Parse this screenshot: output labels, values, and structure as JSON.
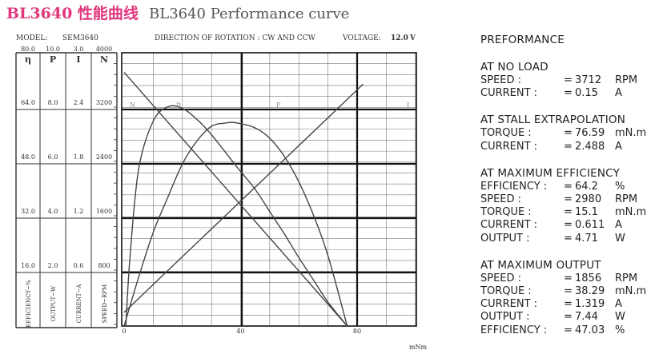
{
  "title": {
    "main": "BL3640 性能曲线",
    "sub": "BL3640 Performance curve"
  },
  "header": {
    "model_label": "MODEL:",
    "model_value": "SEM3640",
    "direction": "DIRECTION OF ROTATION : CW AND CCW",
    "voltage_label": "VOLTAGE:",
    "voltage_value": "12.0",
    "voltage_unit": "V"
  },
  "chart_data": {
    "type": "line",
    "x": {
      "unit": "mNm",
      "range": [
        0,
        96
      ],
      "ticks": [
        "0",
        "40",
        "80"
      ],
      "tick_values": [
        0,
        40,
        80
      ]
    },
    "axes": [
      {
        "symbol": "η",
        "title": "EFFICIENCY~%",
        "max": "80.0",
        "ticks": [
          "64.0",
          "48.0",
          "32.0",
          "16.0"
        ]
      },
      {
        "symbol": "P",
        "title": "OUTPUT~W",
        "max": "10.0",
        "ticks": [
          "8.0",
          "6.0",
          "4.0",
          "2.0"
        ]
      },
      {
        "symbol": "I",
        "title": "CURRENT~A",
        "max": "3.0",
        "ticks": [
          "2.4",
          "1.8",
          "1.2",
          "0.6"
        ]
      },
      {
        "symbol": "N",
        "title": "SPEED~RPM",
        "max": "4000",
        "ticks": [
          "3200",
          "2400",
          "1600",
          "800"
        ]
      }
    ],
    "grid": true,
    "series": [
      {
        "name": "N",
        "axis": "N",
        "x": [
          0,
          38.29,
          76.59
        ],
        "y": [
          3712,
          1856,
          0
        ]
      },
      {
        "name": "I",
        "axis": "I",
        "x": [
          0,
          15.1,
          38.29,
          76.59,
          82.0
        ],
        "y": [
          0.15,
          0.611,
          1.319,
          2.488,
          2.655
        ]
      },
      {
        "name": "P",
        "axis": "P",
        "x": [
          0,
          5,
          10,
          15,
          20,
          25,
          30,
          35,
          38.29,
          45,
          50,
          55,
          60,
          65,
          70,
          76.59
        ],
        "y": [
          0,
          1.79,
          3.43,
          4.71,
          5.93,
          6.77,
          7.31,
          7.43,
          7.44,
          7.25,
          6.87,
          6.21,
          5.27,
          4.06,
          2.57,
          0
        ]
      },
      {
        "name": "η",
        "axis": "η",
        "x": [
          0.6,
          2,
          5,
          10,
          15.1,
          20,
          25,
          30,
          38.29,
          45,
          50,
          55,
          60,
          65,
          70,
          76.59
        ],
        "y": [
          0,
          20.0,
          46.0,
          60.0,
          64.2,
          63.7,
          60.5,
          56.0,
          47.03,
          40.0,
          33.5,
          27.0,
          20.0,
          13.5,
          7.0,
          0
        ]
      }
    ]
  },
  "panel": [
    {
      "title": "PREFORMANCE",
      "rows": []
    },
    {
      "title": "AT NO LOAD",
      "rows": [
        {
          "label": "SPEED :",
          "value": "3712",
          "unit": "RPM"
        },
        {
          "label": "CURRENT :",
          "value": "0.15",
          "unit": "A"
        }
      ]
    },
    {
      "title": "AT STALL EXTRAPOLATION",
      "rows": [
        {
          "label": "TORQUE :",
          "value": "76.59",
          "unit": "mN.m"
        },
        {
          "label": "CURRENT :",
          "value": "2.488",
          "unit": "A"
        }
      ]
    },
    {
      "title": "AT MAXIMUM EFFICIENCY",
      "rows": [
        {
          "label": "EFFICIENCY :",
          "value": "64.2",
          "unit": "%"
        },
        {
          "label": "SPEED :",
          "value": "2980",
          "unit": "RPM"
        },
        {
          "label": "TORQUE :",
          "value": "15.1",
          "unit": "mN.m"
        },
        {
          "label": "CURRENT :",
          "value": "0.611",
          "unit": "A"
        },
        {
          "label": "OUTPUT :",
          "value": "4.71",
          "unit": "W"
        }
      ]
    },
    {
      "title": "AT MAXIMUM OUTPUT",
      "rows": [
        {
          "label": "SPEED :",
          "value": "1856",
          "unit": "RPM"
        },
        {
          "label": "TORQUE :",
          "value": "38.29",
          "unit": "mN.m"
        },
        {
          "label": "CURRENT :",
          "value": "1.319",
          "unit": "A"
        },
        {
          "label": "OUTPUT :",
          "value": "7.44",
          "unit": "W"
        },
        {
          "label": "EFFICIENCY :",
          "value": "47.03",
          "unit": "%"
        }
      ]
    }
  ]
}
